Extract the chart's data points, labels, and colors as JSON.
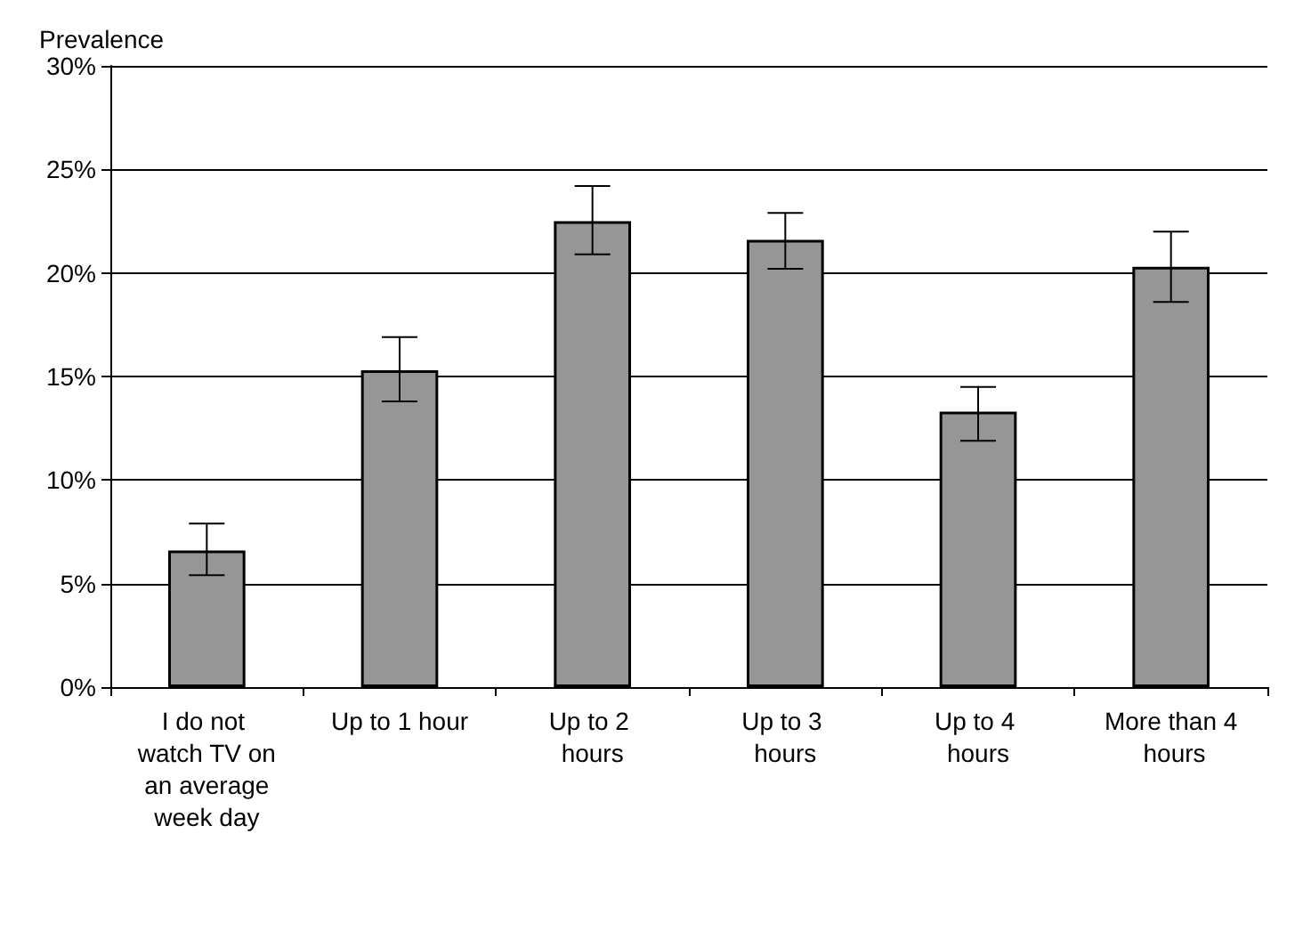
{
  "chart_data": {
    "type": "bar",
    "ylabel": "Prevalence",
    "categories": [
      "I do not watch TV on an average week day",
      "Up to 1 hour",
      "Up to 2 hours",
      "Up to 3 hours",
      "Up to 4 hours",
      "More than 4 hours"
    ],
    "values": [
      6.6,
      15.3,
      22.5,
      21.6,
      13.3,
      20.3
    ],
    "errors": [
      [
        5.4,
        7.9
      ],
      [
        13.8,
        16.9
      ],
      [
        20.9,
        24.2
      ],
      [
        20.2,
        22.9
      ],
      [
        11.9,
        14.5
      ],
      [
        18.6,
        22.0
      ]
    ],
    "color": "#969696",
    "ylim": [
      0,
      30
    ],
    "yticks": [
      {
        "value": 0,
        "label": "0%"
      },
      {
        "value": 5,
        "label": "5%"
      },
      {
        "value": 10,
        "label": "10%"
      },
      {
        "value": 15,
        "label": "15%"
      },
      {
        "value": 20,
        "label": "20%"
      },
      {
        "value": 25,
        "label": "25%"
      },
      {
        "value": 30,
        "label": "30%"
      }
    ],
    "grid": "y"
  }
}
